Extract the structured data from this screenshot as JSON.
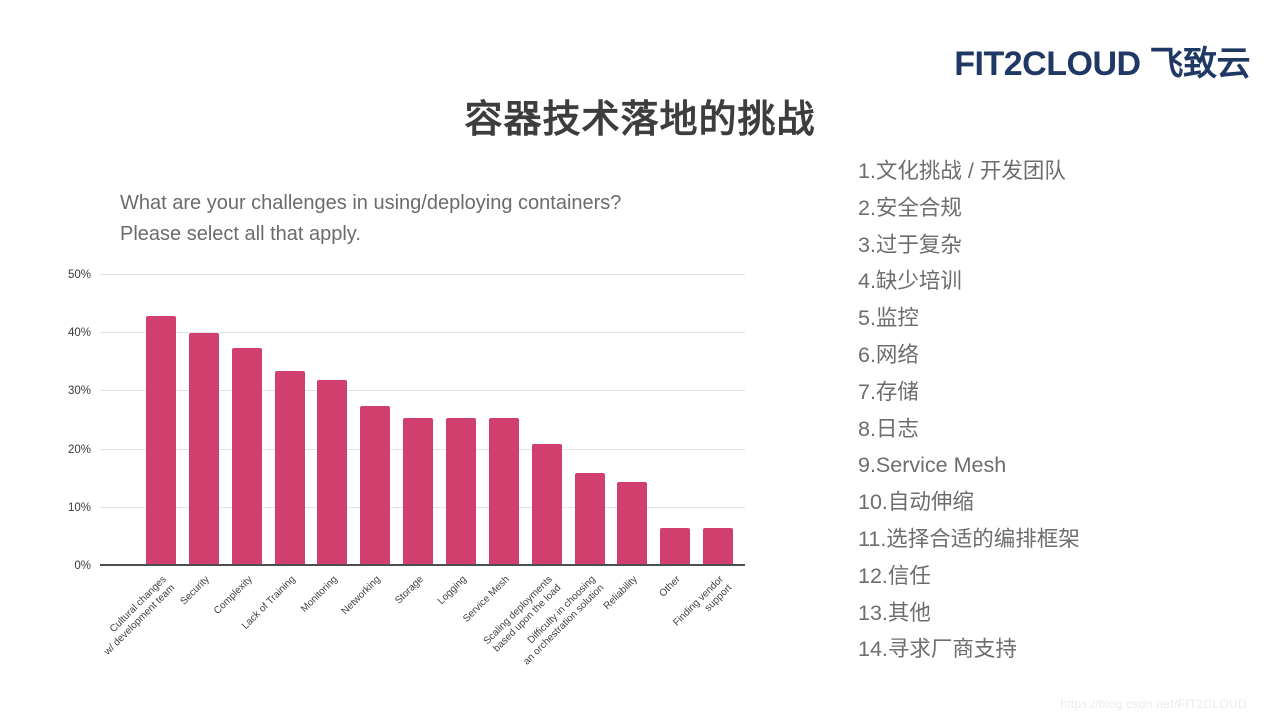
{
  "logo": {
    "text": "FIT2CLOUD 飞致云",
    "color": "#1f3864"
  },
  "title": "容器技术落地的挑战",
  "chart_data": {
    "type": "bar",
    "title": "What are your challenges in using/deploying containers?\nPlease select all that apply.",
    "categories": [
      "Cultural changes\nw/ development team",
      "Security",
      "Complexity",
      "Lack of Training",
      "Monitoring",
      "Networking",
      "Storage",
      "Logging",
      "Service Mesh",
      "Scaling deployments\nbased upon the load",
      "Difficulty in choosing\nan orchestration solution",
      "Reliability",
      "Other",
      "Finding vendor\nsupport"
    ],
    "values": [
      43,
      40,
      37.5,
      33.5,
      32,
      27.5,
      25.5,
      25.5,
      25.5,
      21,
      16,
      14.5,
      6.5,
      6.5
    ],
    "xlabel": "",
    "ylabel": "",
    "ylim": [
      0,
      50
    ],
    "yticks": [
      0,
      10,
      20,
      30,
      40,
      50
    ],
    "ytick_suffix": "%",
    "grid": true,
    "legend_position": "none",
    "bar_color": "#d13f6e"
  },
  "translation_list": {
    "items": [
      "1.文化挑战 / 开发团队",
      "2.安全合规",
      "3.过于复杂",
      "4.缺少培训",
      "5.监控",
      "6.网络",
      "7.存储",
      "8.日志",
      "9.Service Mesh",
      "10.自动伸缩",
      "11.选择合适的编排框架",
      "12.信任",
      "13.其他",
      "14.寻求厂商支持"
    ]
  },
  "watermark": "https://blog.csdn.net/FIT2CLOUD"
}
